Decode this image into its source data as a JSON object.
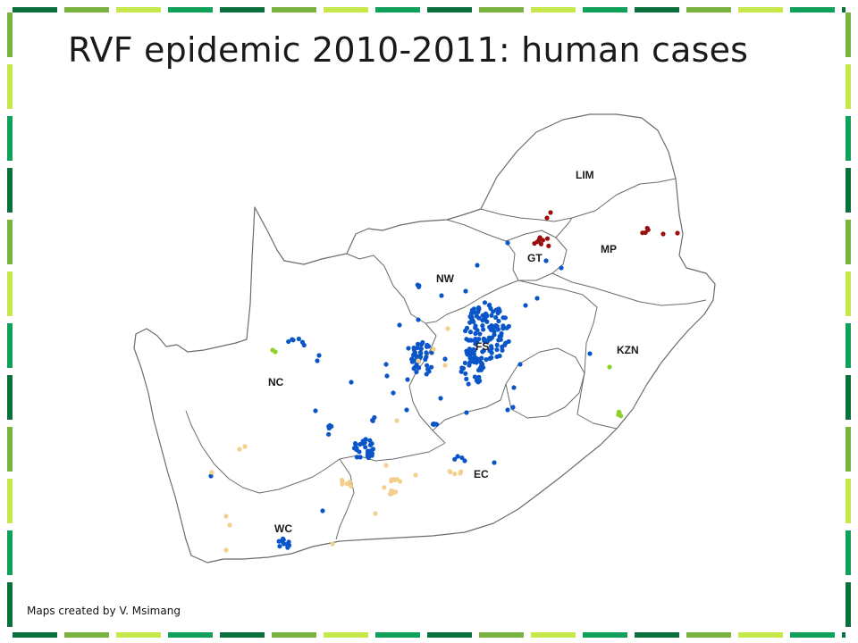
{
  "slide": {
    "title": "RVF epidemic 2010-2011: human cases",
    "credit": "Maps created by V. Msimang"
  },
  "frame_colors": [
    "#0a6f3a",
    "#7ab341",
    "#c7e84a",
    "#10a05a"
  ],
  "map": {
    "province_labels": [
      "LIM",
      "MP",
      "GT",
      "NW",
      "FS",
      "KZN",
      "NC",
      "EC",
      "WC"
    ],
    "dot_colors": {
      "blue": "#0a55c8",
      "red": "#9c0e0e",
      "tan": "#f3cf8c",
      "green": "#8ecf2a"
    }
  }
}
